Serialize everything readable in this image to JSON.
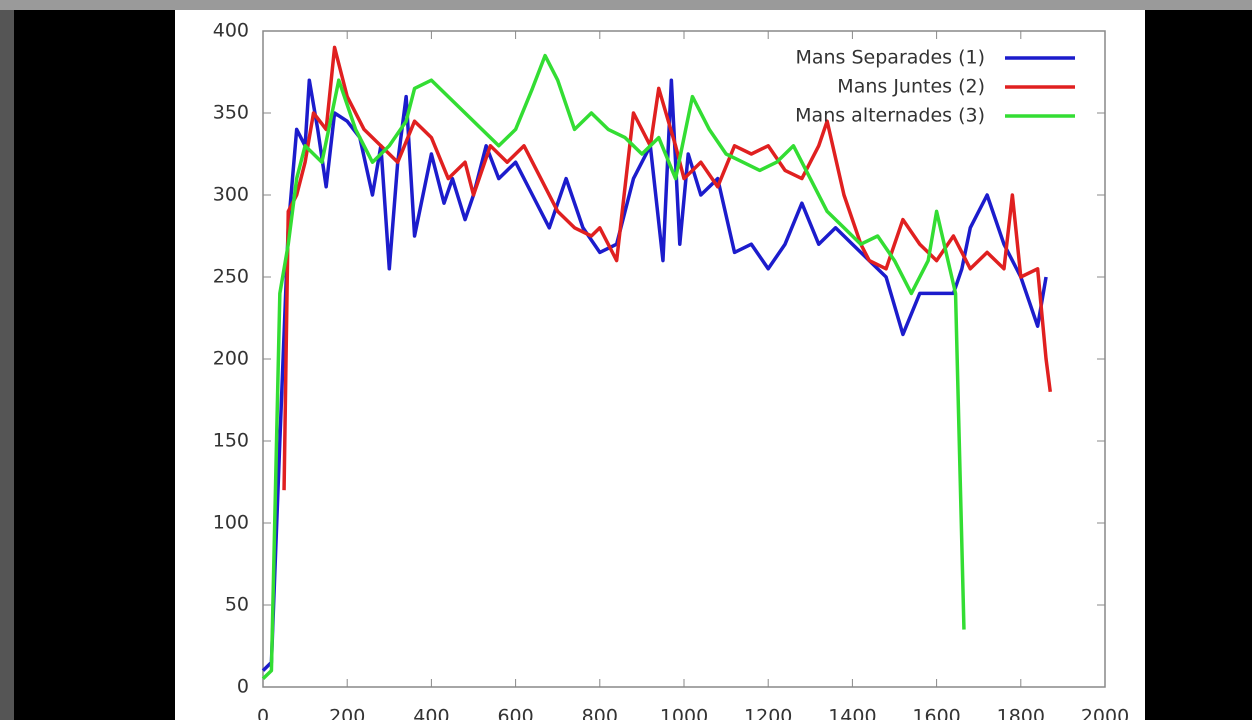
{
  "chart_data": {
    "type": "line",
    "xlim": [
      0,
      2000
    ],
    "xticks": [
      0,
      200,
      400,
      600,
      800,
      1000,
      1200,
      1400,
      1600,
      1800,
      2000
    ],
    "ylim": [
      0,
      400
    ],
    "yticks": [
      0,
      50,
      100,
      150,
      200,
      250,
      300,
      350,
      400
    ],
    "grid": false,
    "legend": "top-right",
    "series": [
      {
        "name": "Mans Separades (1)",
        "color": "#1c1ccc",
        "x": [
          0,
          20,
          40,
          60,
          80,
          100,
          110,
          130,
          150,
          170,
          200,
          230,
          260,
          280,
          300,
          320,
          340,
          360,
          380,
          400,
          430,
          450,
          480,
          500,
          530,
          560,
          600,
          640,
          680,
          720,
          760,
          800,
          840,
          880,
          920,
          950,
          970,
          990,
          1010,
          1040,
          1080,
          1120,
          1160,
          1200,
          1240,
          1280,
          1320,
          1360,
          1400,
          1440,
          1480,
          1520,
          1560,
          1600,
          1640,
          1660,
          1680,
          1720,
          1760,
          1800,
          1820,
          1840,
          1860
        ],
        "values": [
          10,
          15,
          150,
          280,
          340,
          330,
          370,
          340,
          305,
          350,
          345,
          335,
          300,
          330,
          255,
          320,
          360,
          275,
          300,
          325,
          295,
          310,
          285,
          300,
          330,
          310,
          320,
          300,
          280,
          310,
          280,
          265,
          270,
          310,
          330,
          260,
          370,
          270,
          325,
          300,
          310,
          265,
          270,
          255,
          270,
          295,
          270,
          280,
          270,
          260,
          250,
          215,
          240,
          240,
          240,
          255,
          280,
          300,
          270,
          250,
          235,
          220,
          250
        ]
      },
      {
        "name": "Mans Juntes (2)",
        "color": "#e02020",
        "x": [
          50,
          60,
          80,
          100,
          120,
          150,
          170,
          200,
          240,
          280,
          320,
          360,
          400,
          440,
          480,
          500,
          540,
          580,
          620,
          660,
          700,
          740,
          780,
          800,
          840,
          880,
          920,
          940,
          980,
          1000,
          1040,
          1080,
          1120,
          1160,
          1200,
          1240,
          1280,
          1320,
          1340,
          1380,
          1420,
          1440,
          1480,
          1520,
          1560,
          1600,
          1640,
          1680,
          1720,
          1760,
          1780,
          1800,
          1840,
          1860,
          1870
        ],
        "values": [
          120,
          290,
          300,
          320,
          350,
          340,
          390,
          360,
          340,
          330,
          320,
          345,
          335,
          310,
          320,
          300,
          330,
          320,
          330,
          310,
          290,
          280,
          275,
          280,
          260,
          350,
          330,
          365,
          330,
          310,
          320,
          305,
          330,
          325,
          330,
          315,
          310,
          330,
          345,
          300,
          270,
          260,
          255,
          285,
          270,
          260,
          275,
          255,
          265,
          255,
          300,
          250,
          255,
          200,
          180
        ]
      },
      {
        "name": "Mans alternades (3)",
        "color": "#33dd33",
        "x": [
          0,
          20,
          40,
          60,
          80,
          100,
          140,
          180,
          220,
          260,
          300,
          340,
          360,
          400,
          440,
          480,
          520,
          560,
          600,
          640,
          670,
          700,
          740,
          780,
          820,
          860,
          900,
          940,
          980,
          1020,
          1060,
          1100,
          1140,
          1180,
          1220,
          1260,
          1300,
          1340,
          1380,
          1420,
          1460,
          1500,
          1540,
          1580,
          1600,
          1645,
          1665
        ],
        "values": [
          5,
          10,
          240,
          270,
          310,
          330,
          320,
          370,
          340,
          320,
          330,
          345,
          365,
          370,
          360,
          350,
          340,
          330,
          340,
          365,
          385,
          370,
          340,
          350,
          340,
          335,
          325,
          335,
          310,
          360,
          340,
          325,
          320,
          315,
          320,
          330,
          310,
          290,
          280,
          270,
          275,
          260,
          240,
          260,
          290,
          240,
          35
        ]
      }
    ]
  }
}
